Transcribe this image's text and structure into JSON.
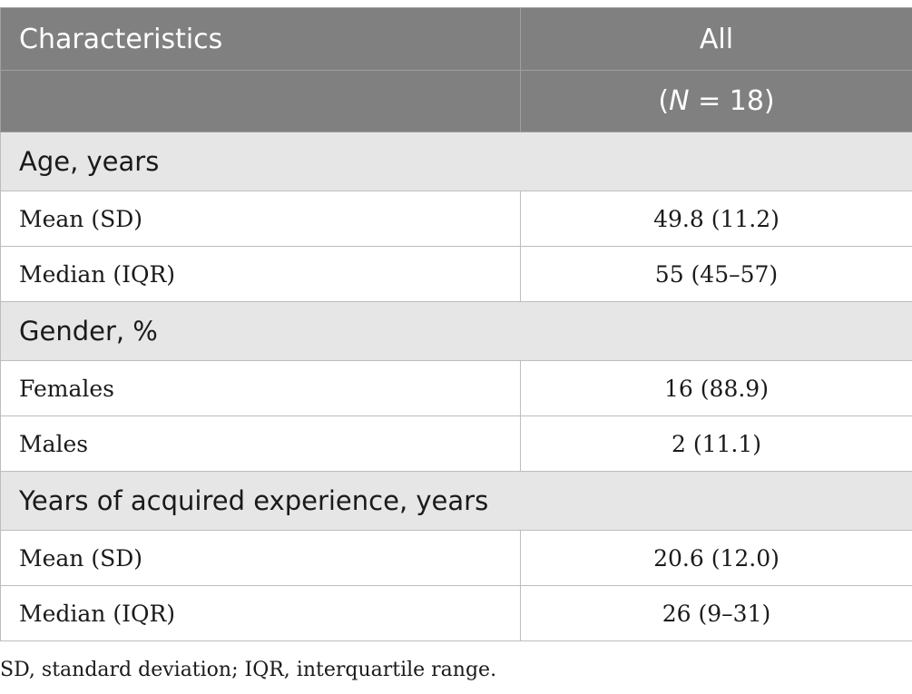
{
  "table": {
    "header": {
      "col1": "Characteristics",
      "col2": "All",
      "col2_sub_open": "(",
      "col2_sub_var": "N",
      "col2_sub_rest": " = 18)"
    },
    "sections": [
      {
        "title": "Age, years",
        "rows": [
          {
            "label": "Mean (SD)",
            "value": "49.8 (11.2)"
          },
          {
            "label": "Median (IQR)",
            "value": "55 (45–57)"
          }
        ]
      },
      {
        "title": "Gender, %",
        "rows": [
          {
            "label": "Females",
            "value": "16 (88.9)"
          },
          {
            "label": "Males",
            "value": "2 (11.1)"
          }
        ]
      },
      {
        "title": "Years of acquired experience, years",
        "rows": [
          {
            "label": "Mean (SD)",
            "value": "20.6 (12.0)"
          },
          {
            "label": "Median (IQR)",
            "value": "26 (9–31)"
          }
        ]
      }
    ]
  },
  "footnote": "SD, standard deviation; IQR, interquartile range."
}
